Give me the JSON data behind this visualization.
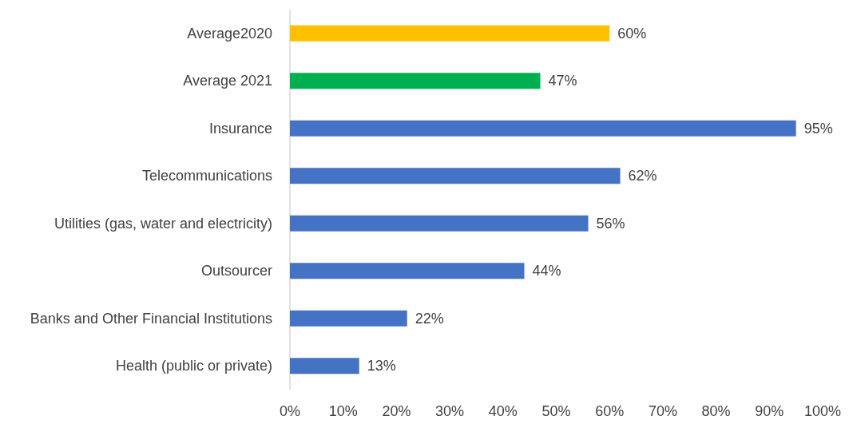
{
  "chart_data": {
    "type": "bar",
    "orientation": "horizontal",
    "categories": [
      "Average2020",
      "Average 2021",
      "Insurance",
      "Telecommunications",
      "Utilities (gas, water and electricity)",
      "Outsourcer",
      "Banks and Other Financial Institutions",
      "Health (public or private)"
    ],
    "values": [
      60,
      47,
      95,
      62,
      56,
      44,
      22,
      13
    ],
    "colors": [
      "#ffc000",
      "#00b050",
      "#4472c4",
      "#4472c4",
      "#4472c4",
      "#4472c4",
      "#4472c4",
      "#4472c4"
    ],
    "value_labels": [
      "60%",
      "47%",
      "95%",
      "62%",
      "56%",
      "44%",
      "22%",
      "13%"
    ],
    "xlim": [
      0,
      100
    ],
    "xticks": [
      {
        "value": 0,
        "label": "0%"
      },
      {
        "value": 10,
        "label": "10%"
      },
      {
        "value": 20,
        "label": "20%"
      },
      {
        "value": 30,
        "label": "30%"
      },
      {
        "value": 40,
        "label": "40%"
      },
      {
        "value": 50,
        "label": "50%"
      },
      {
        "value": 60,
        "label": "60%"
      },
      {
        "value": 70,
        "label": "70%"
      },
      {
        "value": 80,
        "label": "80%"
      },
      {
        "value": 90,
        "label": "90%"
      },
      {
        "value": 100,
        "label": "100%"
      }
    ],
    "grid": false
  }
}
